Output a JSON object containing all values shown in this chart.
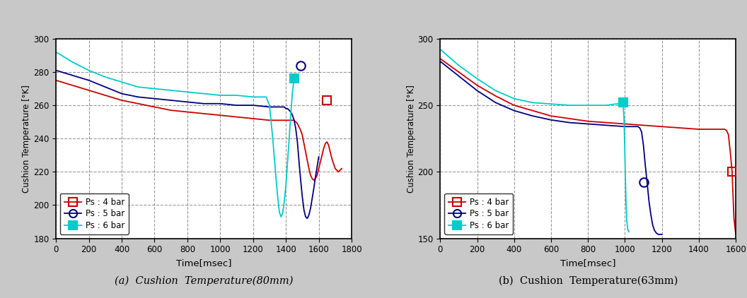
{
  "fig_background": "#c8c8c8",
  "plot_background": "#ffffff",
  "chart_a": {
    "title": "(a)  Cushion  Temperature(80mm)",
    "xlabel": "Time[msec]",
    "ylabel": "Cushion Temperature [°K]",
    "xlim": [
      0,
      1800
    ],
    "ylim": [
      180,
      300
    ],
    "xticks": [
      0,
      200,
      400,
      600,
      800,
      1000,
      1200,
      1400,
      1600,
      1800
    ],
    "yticks": [
      180,
      200,
      220,
      240,
      260,
      280,
      300
    ],
    "series": [
      {
        "label": "Ps : 4 bar",
        "color": "#cc0000",
        "marker": "s",
        "markerfacecolor": "none",
        "marker_x": 1650,
        "marker_y": 263,
        "x": [
          0,
          100,
          200,
          300,
          400,
          500,
          600,
          700,
          800,
          900,
          1000,
          1100,
          1200,
          1300,
          1350,
          1380,
          1400,
          1410,
          1420,
          1430,
          1440,
          1450,
          1460,
          1470,
          1480,
          1490,
          1500,
          1510,
          1520,
          1530,
          1540,
          1550,
          1560,
          1570,
          1580,
          1590,
          1600,
          1610,
          1620,
          1630,
          1640,
          1650,
          1660,
          1670,
          1680,
          1700,
          1720,
          1740
        ],
        "y": [
          275,
          272,
          269,
          266,
          263,
          261,
          259,
          257,
          256,
          255,
          254,
          253,
          252,
          251,
          251,
          251,
          251,
          251,
          251,
          251,
          251,
          251,
          250,
          249,
          247,
          245,
          242,
          237,
          232,
          227,
          222,
          218,
          216,
          215,
          216,
          218,
          222,
          226,
          230,
          234,
          237,
          238,
          236,
          232,
          228,
          222,
          220,
          222
        ]
      },
      {
        "label": "Ps : 5 bar",
        "color": "#000080",
        "marker": "o",
        "markerfacecolor": "none",
        "marker_x": 1490,
        "marker_y": 284,
        "x": [
          0,
          100,
          200,
          300,
          400,
          500,
          600,
          700,
          800,
          900,
          1000,
          1100,
          1200,
          1300,
          1350,
          1370,
          1390,
          1400,
          1410,
          1420,
          1430,
          1440,
          1450,
          1460,
          1470,
          1480,
          1490,
          1500,
          1510,
          1520,
          1530,
          1540,
          1550,
          1560,
          1570,
          1580,
          1590,
          1600
        ],
        "y": [
          281,
          278,
          275,
          271,
          267,
          265,
          264,
          263,
          262,
          261,
          261,
          260,
          260,
          259,
          259,
          259,
          259,
          258,
          258,
          257,
          256,
          254,
          251,
          246,
          238,
          226,
          215,
          205,
          197,
          193,
          192,
          194,
          198,
          204,
          210,
          217,
          223,
          229
        ]
      },
      {
        "label": "Ps : 6 bar",
        "color": "#00cccc",
        "marker": "s",
        "markerfacecolor": "#00cccc",
        "marker_x": 1450,
        "marker_y": 276,
        "x": [
          0,
          100,
          200,
          300,
          400,
          500,
          600,
          700,
          800,
          900,
          1000,
          1100,
          1200,
          1280,
          1300,
          1310,
          1320,
          1330,
          1340,
          1350,
          1360,
          1370,
          1380,
          1390,
          1400,
          1410,
          1420,
          1430,
          1440,
          1450
        ],
        "y": [
          292,
          286,
          281,
          277,
          274,
          271,
          270,
          269,
          268,
          267,
          266,
          266,
          265,
          265,
          260,
          250,
          240,
          228,
          216,
          205,
          196,
          193,
          195,
          202,
          212,
          226,
          240,
          255,
          268,
          276
        ]
      }
    ]
  },
  "chart_b": {
    "title": "(b)  Cushion  Temperature(63mm)",
    "xlabel": "Time[msec]",
    "ylabel": "Cushion Temperature [°K]",
    "xlim": [
      0,
      1600
    ],
    "ylim": [
      150,
      300
    ],
    "xticks": [
      0,
      200,
      400,
      600,
      800,
      1000,
      1200,
      1400,
      1600
    ],
    "yticks": [
      150,
      200,
      250,
      300
    ],
    "series": [
      {
        "label": "Ps : 4 bar",
        "color": "#cc0000",
        "marker": "s",
        "markerfacecolor": "none",
        "marker_x": 1580,
        "marker_y": 200,
        "x": [
          0,
          100,
          200,
          300,
          400,
          500,
          600,
          700,
          800,
          900,
          1000,
          1100,
          1200,
          1300,
          1400,
          1490,
          1500,
          1510,
          1520,
          1530,
          1540,
          1550,
          1560,
          1570,
          1580,
          1590,
          1600
        ],
        "y": [
          285,
          275,
          265,
          257,
          250,
          246,
          242,
          240,
          238,
          237,
          236,
          235,
          234,
          233,
          232,
          232,
          232,
          232,
          232,
          232,
          232,
          231,
          228,
          215,
          200,
          165,
          153
        ]
      },
      {
        "label": "Ps : 5 bar",
        "color": "#000080",
        "marker": "o",
        "markerfacecolor": "none",
        "marker_x": 1100,
        "marker_y": 192,
        "x": [
          0,
          100,
          200,
          300,
          400,
          500,
          600,
          700,
          800,
          900,
          1000,
          1050,
          1060,
          1070,
          1080,
          1090,
          1100,
          1110,
          1120,
          1130,
          1140,
          1150,
          1160,
          1170,
          1180,
          1190,
          1200
        ],
        "y": [
          283,
          272,
          261,
          252,
          246,
          242,
          239,
          237,
          236,
          235,
          234,
          234,
          234,
          234,
          233,
          230,
          220,
          205,
          192,
          178,
          168,
          160,
          156,
          154,
          153,
          153,
          153
        ]
      },
      {
        "label": "Ps : 6 bar",
        "color": "#00cccc",
        "marker": "s",
        "markerfacecolor": "#00cccc",
        "marker_x": 990,
        "marker_y": 252,
        "x": [
          0,
          100,
          200,
          300,
          400,
          500,
          600,
          700,
          800,
          900,
          950,
          960,
          970,
          975,
          980,
          985,
          990,
          995,
          1000,
          1005,
          1010,
          1015,
          1020
        ],
        "y": [
          292,
          280,
          270,
          261,
          255,
          252,
          251,
          250,
          250,
          250,
          251,
          251,
          251,
          252,
          252,
          252,
          250,
          240,
          210,
          180,
          163,
          157,
          155
        ]
      }
    ]
  }
}
